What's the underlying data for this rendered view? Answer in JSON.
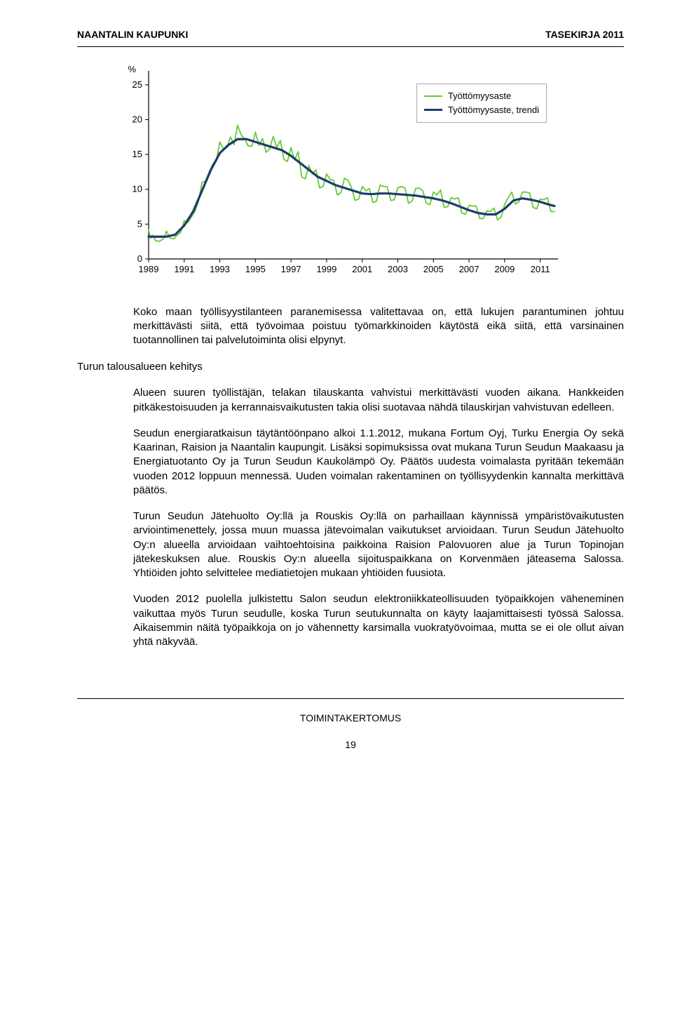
{
  "header": {
    "left": "NAANTALIN KAUPUNKI",
    "right": "TASEKIRJA 2011"
  },
  "chart": {
    "type": "line",
    "y_axis_label": "%",
    "ylim": [
      0,
      27
    ],
    "ytick_step": 5,
    "yticks": [
      0,
      5,
      10,
      15,
      20,
      25
    ],
    "xlim": [
      1989,
      2012
    ],
    "xticks": [
      1989,
      1991,
      1993,
      1995,
      1997,
      1999,
      2001,
      2003,
      2005,
      2007,
      2009,
      2011
    ],
    "grid": false,
    "axis_color": "#000000",
    "axis_width": 1.2,
    "background_color": "#ffffff",
    "title_fontsize": 13,
    "tick_fontsize": 13,
    "series": [
      {
        "name": "Työttömyysaste",
        "color": "#66cc33",
        "line_width": 1.8,
        "smooth": false,
        "data": [
          [
            1989.0,
            4.2
          ],
          [
            1989.1,
            3.0
          ],
          [
            1989.2,
            3.4
          ],
          [
            1989.3,
            3.1
          ],
          [
            1989.4,
            2.6
          ],
          [
            1989.5,
            2.6
          ],
          [
            1989.6,
            2.5
          ],
          [
            1989.7,
            2.7
          ],
          [
            1989.8,
            2.8
          ],
          [
            1989.9,
            3.2
          ],
          [
            1990.0,
            4.0
          ],
          [
            1990.2,
            3.0
          ],
          [
            1990.4,
            2.9
          ],
          [
            1990.6,
            3.4
          ],
          [
            1990.8,
            3.8
          ],
          [
            1991.0,
            5.5
          ],
          [
            1991.2,
            5.2
          ],
          [
            1991.4,
            6.0
          ],
          [
            1991.6,
            6.8
          ],
          [
            1991.8,
            8.2
          ],
          [
            1992.0,
            11.0
          ],
          [
            1992.2,
            11.2
          ],
          [
            1992.4,
            12.5
          ],
          [
            1992.6,
            13.6
          ],
          [
            1992.8,
            14.0
          ],
          [
            1993.0,
            16.8
          ],
          [
            1993.2,
            15.8
          ],
          [
            1993.4,
            16.0
          ],
          [
            1993.6,
            17.5
          ],
          [
            1993.8,
            16.4
          ],
          [
            1994.0,
            19.2
          ],
          [
            1994.2,
            17.8
          ],
          [
            1994.4,
            17.2
          ],
          [
            1994.6,
            16.2
          ],
          [
            1994.8,
            16.2
          ],
          [
            1995.0,
            18.2
          ],
          [
            1995.2,
            16.3
          ],
          [
            1995.4,
            17.3
          ],
          [
            1995.6,
            15.3
          ],
          [
            1995.8,
            15.8
          ],
          [
            1996.0,
            17.6
          ],
          [
            1996.2,
            16.0
          ],
          [
            1996.4,
            17.0
          ],
          [
            1996.6,
            14.3
          ],
          [
            1996.8,
            14.0
          ],
          [
            1997.0,
            16.0
          ],
          [
            1997.2,
            14.2
          ],
          [
            1997.4,
            15.4
          ],
          [
            1997.6,
            11.8
          ],
          [
            1997.8,
            11.5
          ],
          [
            1998.0,
            13.4
          ],
          [
            1998.2,
            12.2
          ],
          [
            1998.4,
            12.8
          ],
          [
            1998.6,
            10.2
          ],
          [
            1998.8,
            10.4
          ],
          [
            1999.0,
            12.2
          ],
          [
            1999.2,
            11.4
          ],
          [
            1999.4,
            11.3
          ],
          [
            1999.6,
            9.2
          ],
          [
            1999.8,
            9.5
          ],
          [
            2000.0,
            11.6
          ],
          [
            2000.2,
            11.3
          ],
          [
            2000.4,
            10.2
          ],
          [
            2000.6,
            8.4
          ],
          [
            2000.8,
            8.6
          ],
          [
            2001.0,
            10.4
          ],
          [
            2001.2,
            9.8
          ],
          [
            2001.4,
            10.1
          ],
          [
            2001.6,
            8.1
          ],
          [
            2001.8,
            8.3
          ],
          [
            2002.0,
            10.6
          ],
          [
            2002.2,
            10.4
          ],
          [
            2002.4,
            10.4
          ],
          [
            2002.6,
            8.4
          ],
          [
            2002.8,
            8.5
          ],
          [
            2003.0,
            10.2
          ],
          [
            2003.2,
            10.4
          ],
          [
            2003.4,
            10.2
          ],
          [
            2003.6,
            8.0
          ],
          [
            2003.8,
            8.3
          ],
          [
            2004.0,
            10.1
          ],
          [
            2004.2,
            10.2
          ],
          [
            2004.4,
            9.8
          ],
          [
            2004.6,
            8.0
          ],
          [
            2004.8,
            7.8
          ],
          [
            2005.0,
            9.6
          ],
          [
            2005.2,
            9.2
          ],
          [
            2005.4,
            9.9
          ],
          [
            2005.6,
            7.4
          ],
          [
            2005.8,
            7.5
          ],
          [
            2006.0,
            8.8
          ],
          [
            2006.2,
            8.6
          ],
          [
            2006.4,
            8.8
          ],
          [
            2006.6,
            6.6
          ],
          [
            2006.8,
            6.4
          ],
          [
            2007.0,
            7.7
          ],
          [
            2007.2,
            7.6
          ],
          [
            2007.4,
            7.6
          ],
          [
            2007.6,
            5.8
          ],
          [
            2007.8,
            5.8
          ],
          [
            2008.0,
            6.9
          ],
          [
            2008.2,
            6.8
          ],
          [
            2008.4,
            7.3
          ],
          [
            2008.6,
            5.6
          ],
          [
            2008.8,
            6.0
          ],
          [
            2009.0,
            7.8
          ],
          [
            2009.2,
            8.8
          ],
          [
            2009.4,
            9.6
          ],
          [
            2009.6,
            7.9
          ],
          [
            2009.8,
            8.2
          ],
          [
            2010.0,
            9.6
          ],
          [
            2010.2,
            9.6
          ],
          [
            2010.4,
            9.5
          ],
          [
            2010.6,
            7.4
          ],
          [
            2010.8,
            7.2
          ],
          [
            2011.0,
            8.6
          ],
          [
            2011.2,
            8.5
          ],
          [
            2011.4,
            8.8
          ],
          [
            2011.6,
            6.8
          ],
          [
            2011.8,
            6.8
          ]
        ]
      },
      {
        "name": "Työttömyysaste, trendi",
        "color": "#1f3a6e",
        "line_width": 3.2,
        "smooth": true,
        "data": [
          [
            1989.0,
            3.2
          ],
          [
            1990.0,
            3.2
          ],
          [
            1990.5,
            3.5
          ],
          [
            1991.0,
            4.8
          ],
          [
            1991.5,
            6.8
          ],
          [
            1992.0,
            9.8
          ],
          [
            1992.5,
            12.8
          ],
          [
            1993.0,
            15.2
          ],
          [
            1993.5,
            16.4
          ],
          [
            1994.0,
            17.2
          ],
          [
            1994.5,
            17.2
          ],
          [
            1995.0,
            16.8
          ],
          [
            1995.5,
            16.4
          ],
          [
            1996.0,
            16.0
          ],
          [
            1996.5,
            15.6
          ],
          [
            1997.0,
            14.8
          ],
          [
            1997.5,
            13.8
          ],
          [
            1998.0,
            12.8
          ],
          [
            1998.5,
            11.8
          ],
          [
            1999.0,
            11.2
          ],
          [
            1999.5,
            10.6
          ],
          [
            2000.0,
            10.2
          ],
          [
            2000.5,
            9.8
          ],
          [
            2001.0,
            9.4
          ],
          [
            2001.5,
            9.3
          ],
          [
            2002.0,
            9.4
          ],
          [
            2002.5,
            9.4
          ],
          [
            2003.0,
            9.3
          ],
          [
            2003.5,
            9.2
          ],
          [
            2004.0,
            9.1
          ],
          [
            2004.5,
            8.9
          ],
          [
            2005.0,
            8.7
          ],
          [
            2005.5,
            8.4
          ],
          [
            2006.0,
            8.0
          ],
          [
            2006.5,
            7.5
          ],
          [
            2007.0,
            7.0
          ],
          [
            2007.5,
            6.6
          ],
          [
            2008.0,
            6.4
          ],
          [
            2008.5,
            6.4
          ],
          [
            2009.0,
            7.2
          ],
          [
            2009.5,
            8.4
          ],
          [
            2010.0,
            8.7
          ],
          [
            2010.5,
            8.5
          ],
          [
            2011.0,
            8.2
          ],
          [
            2011.5,
            7.8
          ],
          [
            2011.8,
            7.6
          ]
        ]
      }
    ],
    "legend": {
      "position": "top-right",
      "border_color": "#aaaaaa",
      "background_color": "#ffffff",
      "fontsize": 13
    }
  },
  "intro_paragraph": "Koko maan työllisyystilanteen paranemisessa valitettavaa on, että lukujen parantuminen johtuu merkittävästi siitä, että työvoimaa poistuu työmarkkinoiden käytöstä eikä siitä, että varsinainen tuotannollinen tai palvelutoiminta olisi elpynyt.",
  "section_heading": "Turun talousalueen kehitys",
  "paragraphs": [
    "Alueen suuren työllistäjän, telakan tilauskanta vahvistui merkittävästi vuoden aikana. Hankkeiden pitkäkestoisuuden ja kerrannaisvaikutusten takia olisi suotavaa nähdä tilauskirjan vahvistuvan edelleen.",
    "Seudun energiaratkaisun täytäntöönpano alkoi 1.1.2012, mukana Fortum Oyj, Turku Energia Oy sekä Kaarinan, Raision ja Naantalin kaupungit. Lisäksi sopimuksissa ovat mukana Turun Seudun Maakaasu ja Energiatuotanto Oy ja Turun Seudun Kaukolämpö Oy. Päätös uudesta voimalasta pyritään tekemään vuoden 2012 loppuun mennessä. Uuden voimalan rakentaminen on työllisyydenkin kannalta merkittävä päätös.",
    "Turun Seudun Jätehuolto Oy:llä ja Rouskis Oy:llä on parhaillaan käynnissä ympäristövaikutusten arviointimenettely, jossa muun muassa jätevoimalan vaikutukset arvioidaan. Turun Seudun Jätehuolto Oy:n alueella arvioidaan vaihtoehtoisina paikkoina Raision Palovuoren alue ja Turun Topinojan jätekeskuksen alue. Rouskis Oy:n alueella sijoituspaikkana on Korvenmäen jäteasema Salossa. Yhtiöiden johto selvittelee mediatietojen mukaan yhtiöiden fuusiota.",
    "Vuoden 2012 puolella julkistettu Salon seudun elektroniikkateollisuuden työpaikkojen väheneminen vaikuttaa myös Turun seudulle, koska Turun seutukunnalta on käyty laajamittaisesti työssä Salossa. Aikaisemmin näitä työpaikkoja on jo vähennetty karsimalla vuokratyövoimaa, mutta se ei ole ollut aivan yhtä näkyvää."
  ],
  "footer": {
    "text": "TOIMINTAKERTOMUS",
    "page_number": "19"
  }
}
